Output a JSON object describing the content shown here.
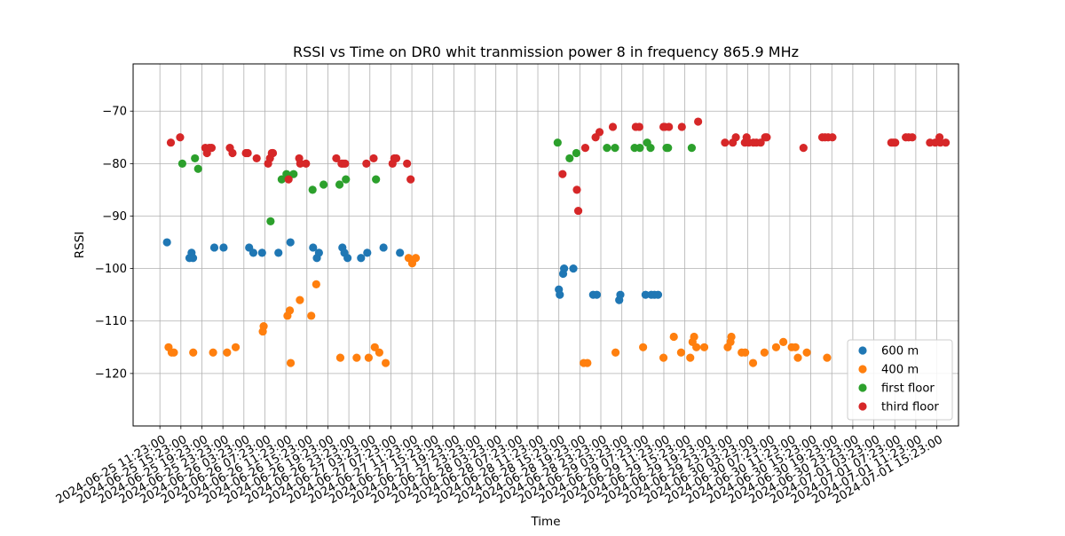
{
  "chart_data": {
    "type": "scatter",
    "title": "RSSI vs Time on DR0  whit tranmission power 8 in frequency 865.9 MHz",
    "xlabel": "Time",
    "ylabel": "RSSI",
    "xlim": [
      "2024-06-25 06:17:00",
      "2024-07-01 19:31:00"
    ],
    "ylim": [
      -130,
      -61
    ],
    "grid": true,
    "legend_position": "lower-right",
    "x_ticks": [
      "2024-06-25 11:23:00",
      "2024-06-25 15:23:00",
      "2024-06-25 19:23:00",
      "2024-06-25 23:23:00",
      "2024-06-26 03:23:00",
      "2024-06-26 07:23:00",
      "2024-06-26 11:23:00",
      "2024-06-26 15:23:00",
      "2024-06-26 19:23:00",
      "2024-06-26 23:23:00",
      "2024-06-27 03:23:00",
      "2024-06-27 07:23:00",
      "2024-06-27 11:23:00",
      "2024-06-27 15:23:00",
      "2024-06-27 19:23:00",
      "2024-06-27 23:23:00",
      "2024-06-28 03:23:00",
      "2024-06-28 07:23:00",
      "2024-06-28 11:23:00",
      "2024-06-28 15:23:00",
      "2024-06-28 19:23:00",
      "2024-06-28 23:23:00",
      "2024-06-29 03:23:00",
      "2024-06-29 07:23:00",
      "2024-06-29 11:23:00",
      "2024-06-29 15:23:00",
      "2024-06-29 19:23:00",
      "2024-06-29 23:23:00",
      "2024-06-30 03:23:00",
      "2024-06-30 07:23:00",
      "2024-06-30 11:23:00",
      "2024-06-30 15:23:00",
      "2024-06-30 19:23:00",
      "2024-06-30 23:23:00",
      "2024-07-01 03:23:00",
      "2024-07-01 07:23:00",
      "2024-07-01 11:23:00",
      "2024-07-01 15:23:00"
    ],
    "y_ticks": [
      -120,
      -110,
      -100,
      -90,
      -80,
      -70
    ],
    "series": [
      {
        "name": "600 m",
        "color": "#1f77b4",
        "points": [
          [
            "2024-06-25 12:44",
            -95
          ],
          [
            "2024-06-25 17:01",
            -98
          ],
          [
            "2024-06-25 17:25",
            -97
          ],
          [
            "2024-06-25 17:42",
            -98
          ],
          [
            "2024-06-25 21:45",
            -96
          ],
          [
            "2024-06-25 23:31",
            -96
          ],
          [
            "2024-06-26 04:23",
            -96
          ],
          [
            "2024-06-26 05:11",
            -97
          ],
          [
            "2024-06-26 06:51",
            -97
          ],
          [
            "2024-06-26 09:58",
            -97
          ],
          [
            "2024-06-26 12:15",
            -95
          ],
          [
            "2024-06-26 16:34",
            -96
          ],
          [
            "2024-06-26 17:17",
            -98
          ],
          [
            "2024-06-26 17:41",
            -97
          ],
          [
            "2024-06-26 22:09",
            -96
          ],
          [
            "2024-06-26 22:32",
            -97
          ],
          [
            "2024-06-26 23:08",
            -98
          ],
          [
            "2024-06-27 01:42",
            -98
          ],
          [
            "2024-06-27 02:53",
            -97
          ],
          [
            "2024-06-27 05:59",
            -96
          ],
          [
            "2024-06-27 09:07",
            -97
          ],
          [
            "2024-06-28 15:23",
            -104
          ],
          [
            "2024-06-28 15:34",
            -105
          ],
          [
            "2024-06-28 16:12",
            -101
          ],
          [
            "2024-06-28 16:23",
            -100
          ],
          [
            "2024-06-28 18:09",
            -100
          ],
          [
            "2024-06-28 21:55",
            -105
          ],
          [
            "2024-06-28 22:37",
            -105
          ],
          [
            "2024-06-29 02:53",
            -106
          ],
          [
            "2024-06-29 03:06",
            -105
          ],
          [
            "2024-06-29 07:54",
            -105
          ],
          [
            "2024-06-29 09:00",
            -105
          ],
          [
            "2024-06-29 09:36",
            -105
          ],
          [
            "2024-06-29 10:17",
            -105
          ]
        ]
      },
      {
        "name": "400 m",
        "color": "#ff7f0e",
        "points": [
          [
            "2024-06-25 13:02",
            -115
          ],
          [
            "2024-06-25 13:38",
            -116
          ],
          [
            "2024-06-25 14:03",
            -116
          ],
          [
            "2024-06-25 17:44",
            -116
          ],
          [
            "2024-06-25 21:31",
            -116
          ],
          [
            "2024-06-26 00:11",
            -116
          ],
          [
            "2024-06-26 01:49",
            -115
          ],
          [
            "2024-06-26 06:59",
            -112
          ],
          [
            "2024-06-26 07:09",
            -111
          ],
          [
            "2024-06-26 11:41",
            -109
          ],
          [
            "2024-06-26 12:08",
            -108
          ],
          [
            "2024-06-26 12:18",
            -118
          ],
          [
            "2024-06-26 14:03",
            -106
          ],
          [
            "2024-06-26 16:13",
            -109
          ],
          [
            "2024-06-26 17:10",
            -103
          ],
          [
            "2024-06-26 21:45",
            -117
          ],
          [
            "2024-06-27 00:52",
            -117
          ],
          [
            "2024-06-27 03:09",
            -117
          ],
          [
            "2024-06-27 04:19",
            -115
          ],
          [
            "2024-06-27 05:11",
            -116
          ],
          [
            "2024-06-27 06:24",
            -118
          ],
          [
            "2024-06-27 10:46",
            -98
          ],
          [
            "2024-06-27 11:27",
            -99
          ],
          [
            "2024-06-27 12:08",
            -98
          ],
          [
            "2024-06-28 20:07",
            -118
          ],
          [
            "2024-06-28 20:49",
            -118
          ],
          [
            "2024-06-29 02:11",
            -116
          ],
          [
            "2024-06-29 07:26",
            -115
          ],
          [
            "2024-06-29 11:19",
            -117
          ],
          [
            "2024-06-29 13:17",
            -113
          ],
          [
            "2024-06-29 14:40",
            -116
          ],
          [
            "2024-06-29 16:25",
            -117
          ],
          [
            "2024-06-29 16:51",
            -114
          ],
          [
            "2024-06-29 17:09",
            -113
          ],
          [
            "2024-06-29 17:35",
            -115
          ],
          [
            "2024-06-29 19:05",
            -115
          ],
          [
            "2024-06-29 23:33",
            -115
          ],
          [
            "2024-06-30 00:05",
            -114
          ],
          [
            "2024-06-30 00:15",
            -113
          ],
          [
            "2024-06-30 02:13",
            -116
          ],
          [
            "2024-06-30 02:53",
            -116
          ],
          [
            "2024-06-30 04:23",
            -118
          ],
          [
            "2024-06-30 06:33",
            -116
          ],
          [
            "2024-06-30 08:46",
            -115
          ],
          [
            "2024-06-30 10:09",
            -114
          ],
          [
            "2024-06-30 11:45",
            -115
          ],
          [
            "2024-06-30 12:27",
            -115
          ],
          [
            "2024-06-30 12:55",
            -117
          ],
          [
            "2024-06-30 14:37",
            -116
          ],
          [
            "2024-06-30 18:29",
            -117
          ]
        ]
      },
      {
        "name": "first floor",
        "color": "#2ca02c",
        "points": [
          [
            "2024-06-25 15:39",
            -80
          ],
          [
            "2024-06-25 18:04",
            -79
          ],
          [
            "2024-06-25 18:40",
            -81
          ],
          [
            "2024-06-26 08:28",
            -91
          ],
          [
            "2024-06-26 10:35",
            -83
          ],
          [
            "2024-06-26 11:30",
            -82
          ],
          [
            "2024-06-26 12:51",
            -82
          ],
          [
            "2024-06-26 16:28",
            -85
          ],
          [
            "2024-06-26 18:34",
            -84
          ],
          [
            "2024-06-26 21:36",
            -84
          ],
          [
            "2024-06-26 22:49",
            -83
          ],
          [
            "2024-06-27 04:33",
            -83
          ],
          [
            "2024-06-28 15:09",
            -76
          ],
          [
            "2024-06-28 17:26",
            -79
          ],
          [
            "2024-06-28 18:43",
            -78
          ],
          [
            "2024-06-29 00:33",
            -77
          ],
          [
            "2024-06-29 02:05",
            -77
          ],
          [
            "2024-06-29 05:49",
            -77
          ],
          [
            "2024-06-29 06:49",
            -77
          ],
          [
            "2024-06-29 08:12",
            -76
          ],
          [
            "2024-06-29 08:51",
            -77
          ],
          [
            "2024-06-29 11:54",
            -77
          ],
          [
            "2024-06-29 12:11",
            -77
          ],
          [
            "2024-06-29 16:42",
            -77
          ]
        ]
      },
      {
        "name": "third floor",
        "color": "#d62728",
        "points": [
          [
            "2024-06-25 13:28",
            -76
          ],
          [
            "2024-06-25 15:14",
            -75
          ],
          [
            "2024-06-25 20:02",
            -77
          ],
          [
            "2024-06-25 20:21",
            -78
          ],
          [
            "2024-06-25 20:49",
            -77
          ],
          [
            "2024-06-25 21:14",
            -77
          ],
          [
            "2024-06-26 00:43",
            -77
          ],
          [
            "2024-06-26 01:13",
            -78
          ],
          [
            "2024-06-26 03:46",
            -78
          ],
          [
            "2024-06-26 04:07",
            -78
          ],
          [
            "2024-06-26 05:49",
            -79
          ],
          [
            "2024-06-26 08:00",
            -80
          ],
          [
            "2024-06-26 08:21",
            -79
          ],
          [
            "2024-06-26 08:42",
            -78
          ],
          [
            "2024-06-26 08:55",
            -78
          ],
          [
            "2024-06-26 11:54",
            -83
          ],
          [
            "2024-06-26 13:55",
            -79
          ],
          [
            "2024-06-26 14:07",
            -80
          ],
          [
            "2024-06-26 15:13",
            -80
          ],
          [
            "2024-06-26 20:59",
            -79
          ],
          [
            "2024-06-26 21:59",
            -80
          ],
          [
            "2024-06-26 22:18",
            -80
          ],
          [
            "2024-06-26 22:40",
            -80
          ],
          [
            "2024-06-27 02:43",
            -80
          ],
          [
            "2024-06-27 04:06",
            -79
          ],
          [
            "2024-06-27 07:42",
            -80
          ],
          [
            "2024-06-27 08:02",
            -79
          ],
          [
            "2024-06-27 08:25",
            -79
          ],
          [
            "2024-06-27 10:28",
            -80
          ],
          [
            "2024-06-27 11:09",
            -83
          ],
          [
            "2024-06-28 16:05",
            -82
          ],
          [
            "2024-06-28 18:49",
            -85
          ],
          [
            "2024-06-28 19:05",
            -89
          ],
          [
            "2024-06-28 20:25",
            -77
          ],
          [
            "2024-06-28 22:23",
            -75
          ],
          [
            "2024-06-28 23:08",
            -74
          ],
          [
            "2024-06-29 01:40",
            -73
          ],
          [
            "2024-06-29 06:02",
            -73
          ],
          [
            "2024-06-29 06:43",
            -73
          ],
          [
            "2024-06-29 11:19",
            -73
          ],
          [
            "2024-06-29 11:34",
            -73
          ],
          [
            "2024-06-29 12:21",
            -73
          ],
          [
            "2024-06-29 14:49",
            -73
          ],
          [
            "2024-06-29 17:55",
            -72
          ],
          [
            "2024-06-29 23:02",
            -76
          ],
          [
            "2024-06-30 00:31",
            -76
          ],
          [
            "2024-06-30 01:06",
            -75
          ],
          [
            "2024-06-30 02:49",
            -76
          ],
          [
            "2024-06-30 03:09",
            -75
          ],
          [
            "2024-06-30 03:34",
            -76
          ],
          [
            "2024-06-30 04:27",
            -76
          ],
          [
            "2024-06-30 05:01",
            -76
          ],
          [
            "2024-06-30 05:50",
            -76
          ],
          [
            "2024-06-30 06:41",
            -75
          ],
          [
            "2024-06-30 06:59",
            -75
          ],
          [
            "2024-06-30 13:59",
            -77
          ],
          [
            "2024-06-30 17:34",
            -75
          ],
          [
            "2024-06-30 18:05",
            -75
          ],
          [
            "2024-06-30 18:41",
            -75
          ],
          [
            "2024-06-30 19:30",
            -75
          ],
          [
            "2024-07-01 06:43",
            -76
          ],
          [
            "2024-07-01 07:04",
            -76
          ],
          [
            "2024-07-01 07:28",
            -76
          ],
          [
            "2024-07-01 09:29",
            -75
          ],
          [
            "2024-07-01 10:01",
            -75
          ],
          [
            "2024-07-01 10:43",
            -75
          ],
          [
            "2024-07-01 14:05",
            -76
          ],
          [
            "2024-07-01 15:05",
            -76
          ],
          [
            "2024-07-01 15:54",
            -75
          ],
          [
            "2024-07-01 16:03",
            -76
          ],
          [
            "2024-07-01 17:05",
            -76
          ]
        ]
      }
    ]
  }
}
